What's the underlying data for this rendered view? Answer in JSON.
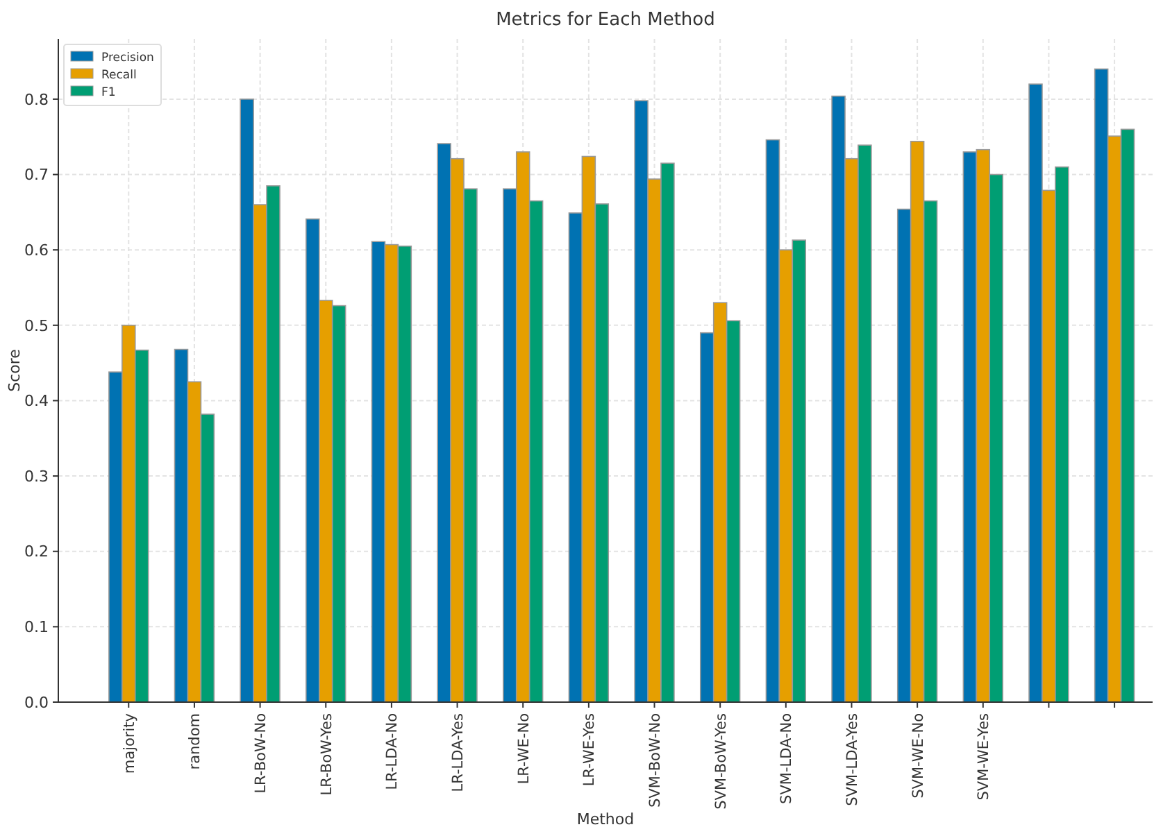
{
  "chart_data": {
    "type": "bar",
    "title": "Metrics for Each Method",
    "xlabel": "Method",
    "ylabel": "Score",
    "categories": [
      "majority",
      "random",
      "LR-BoW-No",
      "LR-BoW-Yes",
      "LR-LDA-No",
      "LR-LDA-Yes",
      "LR-WE-No",
      "LR-WE-Yes",
      "SVM-BoW-No",
      "SVM-BoW-Yes",
      "SVM-LDA-No",
      "SVM-LDA-Yes",
      "SVM-WE-No",
      "SVM-WE-Yes",
      null,
      null
    ],
    "series": [
      {
        "name": "Precision",
        "color": "#0072b2",
        "values": [
          0.438,
          0.468,
          0.8,
          0.641,
          0.611,
          0.741,
          0.681,
          0.649,
          0.798,
          0.49,
          0.746,
          0.804,
          0.654,
          0.73,
          0.82,
          0.84
        ]
      },
      {
        "name": "Recall",
        "color": "#e69f00",
        "values": [
          0.5,
          0.425,
          0.66,
          0.533,
          0.607,
          0.721,
          0.73,
          0.724,
          0.694,
          0.53,
          0.6,
          0.721,
          0.744,
          0.733,
          0.679,
          0.751
        ]
      },
      {
        "name": "F1",
        "color": "#009e73",
        "values": [
          0.467,
          0.382,
          0.685,
          0.526,
          0.605,
          0.681,
          0.665,
          0.661,
          0.715,
          0.506,
          0.613,
          0.739,
          0.665,
          0.7,
          0.71,
          0.76
        ]
      }
    ],
    "ylim": [
      0,
      0.88
    ],
    "yticks": [
      {
        "value": 0,
        "label": "0.0"
      },
      {
        "value": 0.1,
        "label": "0.1"
      },
      {
        "value": 0.2,
        "label": "0.2"
      },
      {
        "value": 0.3,
        "label": "0.3"
      },
      {
        "value": 0.4,
        "label": "0.4"
      },
      {
        "value": 0.5,
        "label": "0.5"
      },
      {
        "value": 0.6,
        "label": "0.6"
      },
      {
        "value": 0.7,
        "label": "0.7"
      },
      {
        "value": 0.8,
        "label": "0.8"
      }
    ],
    "grid": true,
    "legend": "top left"
  }
}
